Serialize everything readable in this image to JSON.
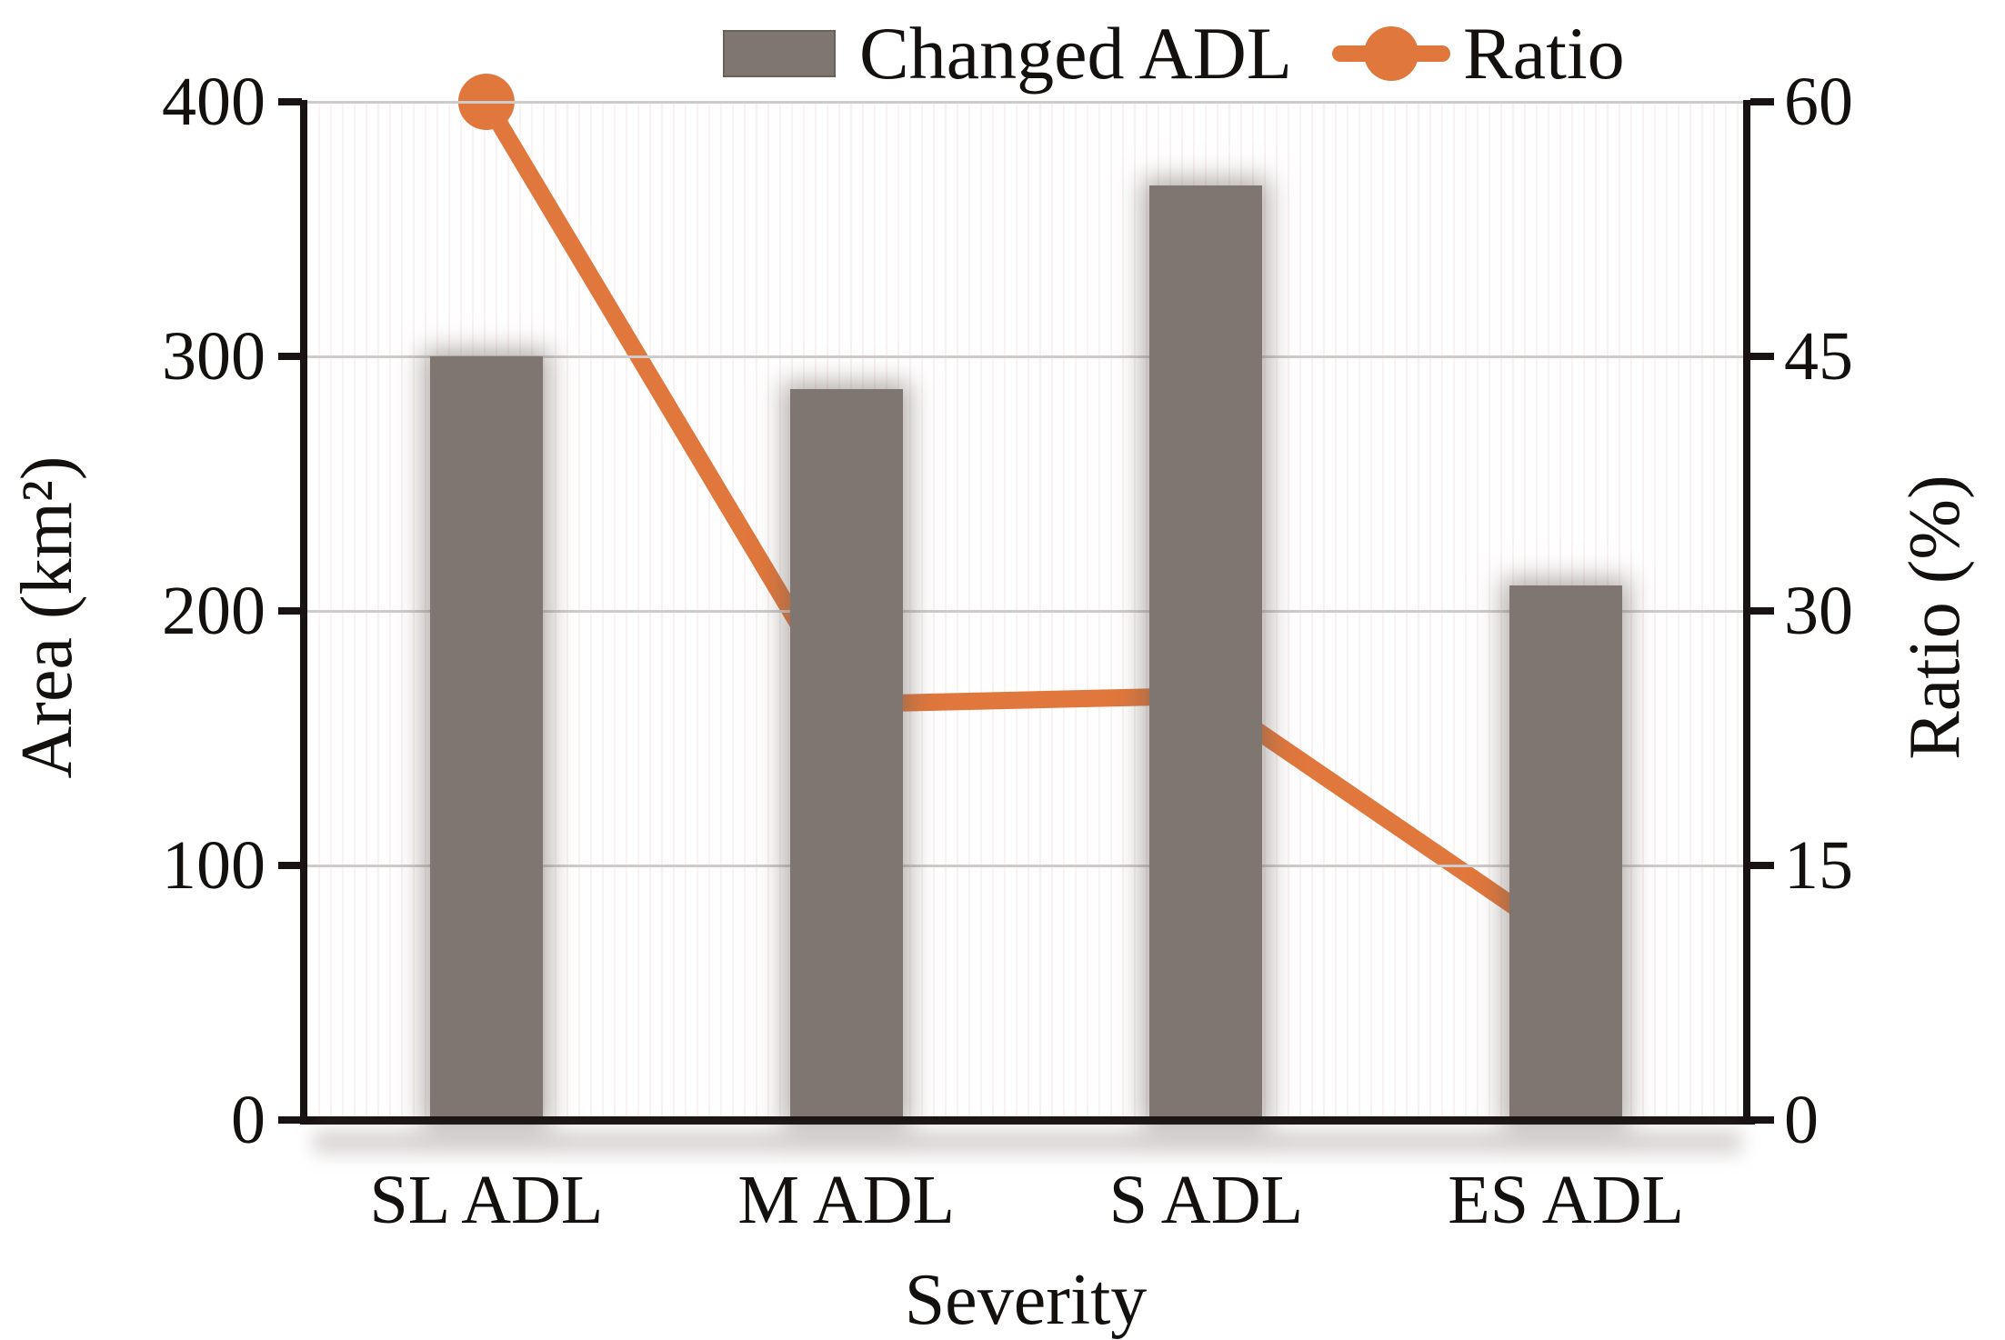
{
  "chart_data": {
    "type": "bar",
    "combo": "bar+line dual-axis",
    "title": "",
    "categories": [
      "SL ADL",
      "M ADL",
      "S ADL",
      "ES ADL"
    ],
    "series": [
      {
        "name": "Changed ADL",
        "type": "bar",
        "axis": "left",
        "values": [
          300,
          287,
          367,
          210
        ]
      },
      {
        "name": "Ratio",
        "type": "line",
        "axis": "right",
        "values": [
          60,
          24.5,
          25,
          10.5
        ]
      }
    ],
    "xlabel": "Severity",
    "ylabel_left": "Area (km²)",
    "ylabel_right": "Ratio (%)",
    "y_left_ticks": [
      "400",
      "300",
      "200",
      "100",
      "0"
    ],
    "y_right_ticks": [
      "60",
      "45",
      "30",
      "15",
      "0"
    ],
    "ylim_left": [
      0,
      400
    ],
    "ylim_right": [
      0,
      60
    ],
    "grid": "horizontal gridlines at left-axis 100/200/300/400",
    "legend_position": "top-center",
    "marker": "filled circle",
    "colors": {
      "bar": "#7f7672",
      "line": "#e0773c",
      "gridline": "#cfcbca",
      "axis": "#181312",
      "text": "#14100e"
    }
  }
}
